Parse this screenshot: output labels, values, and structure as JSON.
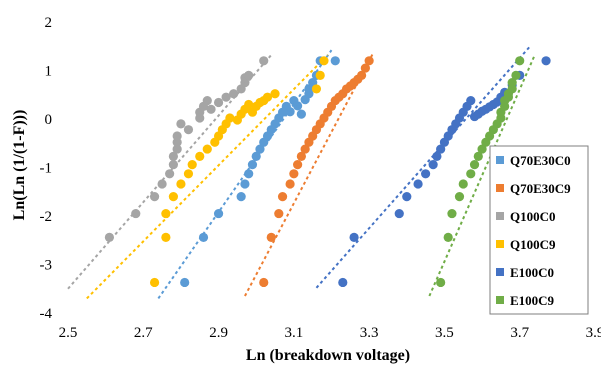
{
  "chart_data": {
    "type": "scatter",
    "title": "",
    "xlabel": "Ln (breakdown voltage)",
    "ylabel": "Ln(Ln (1/(1-F)))",
    "xlim": [
      2.5,
      3.9
    ],
    "ylim": [
      -4,
      2
    ],
    "xticks": [
      "2.5",
      "2.7",
      "2.9",
      "3.1",
      "3.3",
      "3.5",
      "3.7",
      "3.9"
    ],
    "yticks": [
      "-4",
      "-3",
      "-2",
      "-1",
      "0",
      "1",
      "2"
    ],
    "grid": false,
    "legend": {
      "position": "right",
      "border": true
    },
    "series": [
      {
        "name": "Q70E30C0",
        "color": "#5B9BD5",
        "trendline": {
          "x": [
            2.74,
            3.2
          ],
          "y": [
            -3.7,
            1.42
          ]
        },
        "x": [
          2.81,
          2.86,
          2.9,
          2.96,
          2.97,
          2.98,
          2.99,
          3.0,
          3.01,
          3.02,
          3.03,
          3.04,
          3.05,
          3.06,
          3.07,
          3.08,
          3.09,
          3.1,
          3.11,
          3.12,
          3.13,
          3.14,
          3.14,
          3.15,
          3.16,
          3.17,
          3.21
        ],
        "y": [
          -3.37,
          -2.44,
          -1.95,
          -1.6,
          -1.34,
          -1.13,
          -0.94,
          -0.77,
          -0.62,
          -0.48,
          -0.35,
          -0.22,
          -0.1,
          0.02,
          0.14,
          0.26,
          0.15,
          0.38,
          0.27,
          0.1,
          0.4,
          0.52,
          0.62,
          0.75,
          0.9,
          1.2,
          1.2
        ]
      },
      {
        "name": "Q70E30C9",
        "color": "#ED7D31",
        "trendline": {
          "x": [
            2.97,
            3.31
          ],
          "y": [
            -3.65,
            1.35
          ]
        },
        "x": [
          3.02,
          3.04,
          3.06,
          3.07,
          3.09,
          3.1,
          3.11,
          3.12,
          3.13,
          3.14,
          3.15,
          3.16,
          3.17,
          3.18,
          3.19,
          3.2,
          3.21,
          3.22,
          3.23,
          3.24,
          3.25,
          3.26,
          3.27,
          3.28,
          3.29,
          3.3
        ],
        "y": [
          -3.37,
          -2.44,
          -1.95,
          -1.6,
          -1.34,
          -1.13,
          -0.94,
          -0.77,
          -0.62,
          -0.48,
          -0.35,
          -0.22,
          -0.1,
          0.02,
          0.14,
          0.26,
          0.38,
          0.45,
          0.52,
          0.62,
          0.68,
          0.75,
          0.82,
          0.9,
          1.05,
          1.2
        ]
      },
      {
        "name": "Q100C0",
        "color": "#A5A5A5",
        "trendline": {
          "x": [
            2.5,
            3.04
          ],
          "y": [
            -3.5,
            1.32
          ]
        },
        "x": [
          2.61,
          2.68,
          2.73,
          2.75,
          2.77,
          2.78,
          2.78,
          2.79,
          2.79,
          2.79,
          2.8,
          2.82,
          2.85,
          2.85,
          2.86,
          2.87,
          2.88,
          2.9,
          2.92,
          2.94,
          2.96,
          2.97,
          2.97,
          2.98,
          3.02
        ],
        "y": [
          -2.44,
          -1.95,
          -1.6,
          -1.34,
          -1.13,
          -0.94,
          -0.77,
          -0.62,
          -0.48,
          -0.35,
          -0.1,
          -0.22,
          0.02,
          0.14,
          0.26,
          0.38,
          0.2,
          0.34,
          0.45,
          0.52,
          0.62,
          0.75,
          0.85,
          0.9,
          1.2
        ]
      },
      {
        "name": "Q100C9",
        "color": "#FFC000",
        "trendline": {
          "x": [
            2.55,
            3.19
          ],
          "y": [
            -3.7,
            1.32
          ]
        },
        "x": [
          2.73,
          2.76,
          2.76,
          2.78,
          2.8,
          2.82,
          2.83,
          2.85,
          2.87,
          2.89,
          2.9,
          2.91,
          2.92,
          2.93,
          2.95,
          2.96,
          2.97,
          2.98,
          2.99,
          3.0,
          3.01,
          3.02,
          3.03,
          3.05,
          3.16,
          3.17,
          3.18
        ],
        "y": [
          -3.37,
          -2.44,
          -1.95,
          -1.6,
          -1.34,
          -1.13,
          -0.94,
          -0.77,
          -0.62,
          -0.48,
          -0.35,
          -0.22,
          -0.1,
          0.02,
          -0.02,
          0.1,
          0.2,
          0.3,
          0.14,
          0.26,
          0.34,
          0.38,
          0.45,
          0.52,
          0.62,
          0.9,
          1.2
        ]
      },
      {
        "name": "E100C0",
        "color": "#4472C4",
        "trendline": {
          "x": [
            3.16,
            3.73
          ],
          "y": [
            -3.48,
            1.52
          ]
        },
        "x": [
          3.23,
          3.26,
          3.38,
          3.4,
          3.43,
          3.45,
          3.47,
          3.48,
          3.49,
          3.5,
          3.51,
          3.52,
          3.53,
          3.54,
          3.55,
          3.56,
          3.57,
          3.58,
          3.59,
          3.6,
          3.61,
          3.62,
          3.63,
          3.64,
          3.65,
          3.66,
          3.68,
          3.7,
          3.77
        ],
        "y": [
          -3.37,
          -2.44,
          -1.95,
          -1.6,
          -1.34,
          -1.13,
          -0.94,
          -0.77,
          -0.62,
          -0.48,
          -0.35,
          -0.22,
          -0.1,
          0.02,
          0.14,
          0.26,
          0.38,
          0.05,
          0.1,
          0.16,
          0.2,
          0.25,
          0.3,
          0.35,
          0.45,
          0.55,
          0.7,
          0.9,
          1.2
        ]
      },
      {
        "name": "E100C9",
        "color": "#70AD47",
        "trendline": {
          "x": [
            3.46,
            3.74
          ],
          "y": [
            -3.65,
            1.32
          ]
        },
        "x": [
          3.49,
          3.51,
          3.52,
          3.54,
          3.55,
          3.57,
          3.58,
          3.59,
          3.6,
          3.61,
          3.62,
          3.63,
          3.64,
          3.65,
          3.65,
          3.66,
          3.66,
          3.67,
          3.67,
          3.68,
          3.68,
          3.69,
          3.7
        ],
        "y": [
          -3.37,
          -2.44,
          -1.95,
          -1.6,
          -1.34,
          -1.13,
          -0.94,
          -0.77,
          -0.62,
          -0.48,
          -0.35,
          -0.22,
          -0.1,
          0.02,
          0.14,
          0.26,
          0.38,
          0.45,
          0.52,
          0.62,
          0.75,
          0.9,
          1.2
        ]
      }
    ]
  }
}
